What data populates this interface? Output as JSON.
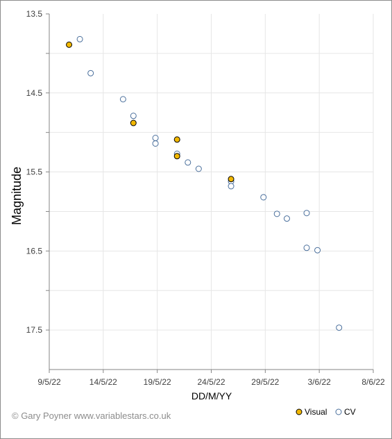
{
  "chart_data": {
    "type": "scatter",
    "xlabel": "DD/M/YY",
    "ylabel": "Magnitude",
    "x_range": [
      "2022-05-09",
      "2022-06-08"
    ],
    "x_ticks": [
      {
        "date": "2022-05-09",
        "label": "9/5/22"
      },
      {
        "date": "2022-05-14",
        "label": "14/5/22"
      },
      {
        "date": "2022-05-19",
        "label": "19/5/22"
      },
      {
        "date": "2022-05-24",
        "label": "24/5/22"
      },
      {
        "date": "2022-05-29",
        "label": "29/5/22"
      },
      {
        "date": "2022-06-03",
        "label": "3/6/22"
      },
      {
        "date": "2022-06-08",
        "label": "8/6/22"
      }
    ],
    "ylim": [
      13.5,
      18.0
    ],
    "y_inverted": true,
    "y_labeled_ticks": [
      13.5,
      14.5,
      15.5,
      16.5,
      17.5
    ],
    "y_minor_ticks": [
      14.0,
      15.0,
      16.0,
      17.0
    ],
    "grid": true,
    "legend_position": "bottom-right",
    "series": [
      {
        "name": "Visual",
        "color": "#f2b800",
        "marker": "filled-circle",
        "points": [
          {
            "x": "2022-05-10 20:00",
            "y": 13.89
          },
          {
            "x": "2022-05-16 19:00",
            "y": 14.88
          },
          {
            "x": "2022-05-20 20:00",
            "y": 15.09
          },
          {
            "x": "2022-05-20 20:00",
            "y": 15.3
          },
          {
            "x": "2022-05-25 20:00",
            "y": 15.59
          }
        ]
      },
      {
        "name": "CV",
        "color": "#4a6f9c",
        "marker": "open-circle",
        "points": [
          {
            "x": "2022-05-11 20:00",
            "y": 13.82
          },
          {
            "x": "2022-05-12 20:00",
            "y": 14.25
          },
          {
            "x": "2022-05-15 20:00",
            "y": 14.58
          },
          {
            "x": "2022-05-16 19:00",
            "y": 14.79
          },
          {
            "x": "2022-05-18 20:00",
            "y": 15.07
          },
          {
            "x": "2022-05-18 20:00",
            "y": 15.14
          },
          {
            "x": "2022-05-20 20:00",
            "y": 15.27
          },
          {
            "x": "2022-05-21 20:00",
            "y": 15.38
          },
          {
            "x": "2022-05-22 20:00",
            "y": 15.46
          },
          {
            "x": "2022-05-25 20:00",
            "y": 15.62
          },
          {
            "x": "2022-05-25 20:00",
            "y": 15.68
          },
          {
            "x": "2022-05-28 20:00",
            "y": 15.82
          },
          {
            "x": "2022-05-30 02:00",
            "y": 16.03
          },
          {
            "x": "2022-05-31 00:00",
            "y": 16.09
          },
          {
            "x": "2022-06-01 20:00",
            "y": 16.02
          },
          {
            "x": "2022-06-01 20:00",
            "y": 16.46
          },
          {
            "x": "2022-06-02 20:00",
            "y": 16.49
          },
          {
            "x": "2022-06-04 20:00",
            "y": 17.47
          }
        ]
      }
    ]
  },
  "credit": "© Gary Poyner  www.variablestars.co.uk",
  "colors": {
    "axis": "#868686",
    "grid": "#e6e6e6",
    "visual_stroke": "#000000"
  }
}
